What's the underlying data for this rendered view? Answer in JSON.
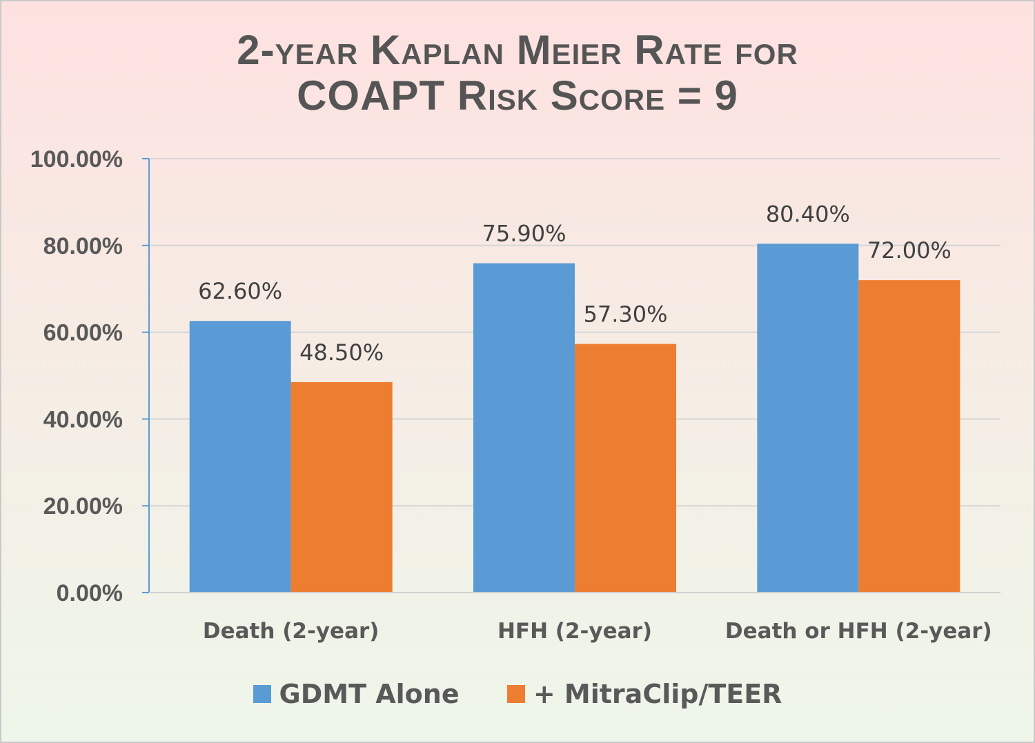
{
  "chart_data": {
    "type": "bar",
    "title_lines": [
      "2-year Kaplan Meier Rate for",
      "COAPT Risk Score = 9"
    ],
    "categories": [
      "Death (2-year)",
      "HFH (2-year)",
      "Death or HFH (2-year)"
    ],
    "series": [
      {
        "name": "GDMT Alone",
        "color": "#5b9bd5",
        "values": [
          62.6,
          75.9,
          80.4
        ],
        "labels": [
          "62.60%",
          "75.90%",
          "80.40%"
        ]
      },
      {
        "name": "+ MitraClip/TEER",
        "color": "#ed7d31",
        "values": [
          48.5,
          57.3,
          72.0
        ],
        "labels": [
          "48.50%",
          "57.30%",
          "72.00%"
        ]
      }
    ],
    "yticks": [
      0,
      20,
      40,
      60,
      80,
      100
    ],
    "ytick_labels": [
      "0.00%",
      "20.00%",
      "40.00%",
      "60.00%",
      "80.00%",
      "100.00%"
    ],
    "ylim": [
      0,
      100
    ],
    "grid": true,
    "legend_position": "bottom"
  }
}
